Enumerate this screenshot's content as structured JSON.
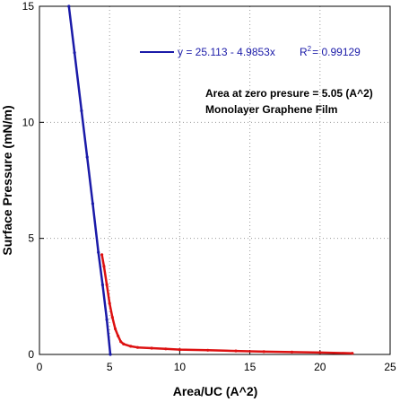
{
  "chart_data": {
    "type": "scatter",
    "title": "",
    "xlabel": "Area/UC (A^2)",
    "ylabel": "Surface Pressure (mN/m)",
    "xlim": [
      0,
      25
    ],
    "ylim": [
      0,
      15
    ],
    "xticks": [
      "0",
      "5",
      "10",
      "15",
      "20",
      "25"
    ],
    "yticks": [
      "0",
      "5",
      "10",
      "15"
    ],
    "grid": true,
    "colors": {
      "fit": "#1a1aa8",
      "data": "#dd1111"
    },
    "fit": {
      "intercept": 25.113,
      "slope": -4.9853,
      "equation_label": "y = 25.113 - 4.9853x",
      "r2_label": "R",
      "r2_sup": "2",
      "r2_value": "= 0.99129"
    },
    "annotations": [
      "Area at  zero presure = 5.05 (A^2)",
      "Monolayer Graphene Film"
    ],
    "series": [
      {
        "color": "#1a1aa8",
        "points": [
          [
            2.1,
            15.0
          ],
          [
            2.5,
            13.0
          ],
          [
            3.0,
            10.5
          ],
          [
            3.4,
            8.5
          ],
          [
            3.8,
            6.5
          ],
          [
            4.2,
            4.4
          ],
          [
            4.5,
            3.0
          ],
          [
            4.8,
            1.5
          ],
          [
            5.05,
            0.0
          ]
        ]
      },
      {
        "color": "#dd1111",
        "points": [
          [
            4.45,
            4.3
          ],
          [
            4.6,
            3.8
          ],
          [
            4.8,
            3.0
          ],
          [
            5.0,
            2.2
          ],
          [
            5.2,
            1.6
          ],
          [
            5.4,
            1.1
          ],
          [
            5.6,
            0.8
          ],
          [
            5.8,
            0.55
          ],
          [
            6.0,
            0.45
          ],
          [
            6.5,
            0.35
          ],
          [
            7.0,
            0.3
          ],
          [
            8.0,
            0.27
          ],
          [
            9.0,
            0.24
          ],
          [
            10.0,
            0.21
          ],
          [
            12.0,
            0.18
          ],
          [
            14.0,
            0.15
          ],
          [
            16.0,
            0.12
          ],
          [
            18.0,
            0.1
          ],
          [
            20.0,
            0.08
          ],
          [
            22.3,
            0.05
          ]
        ]
      }
    ]
  }
}
